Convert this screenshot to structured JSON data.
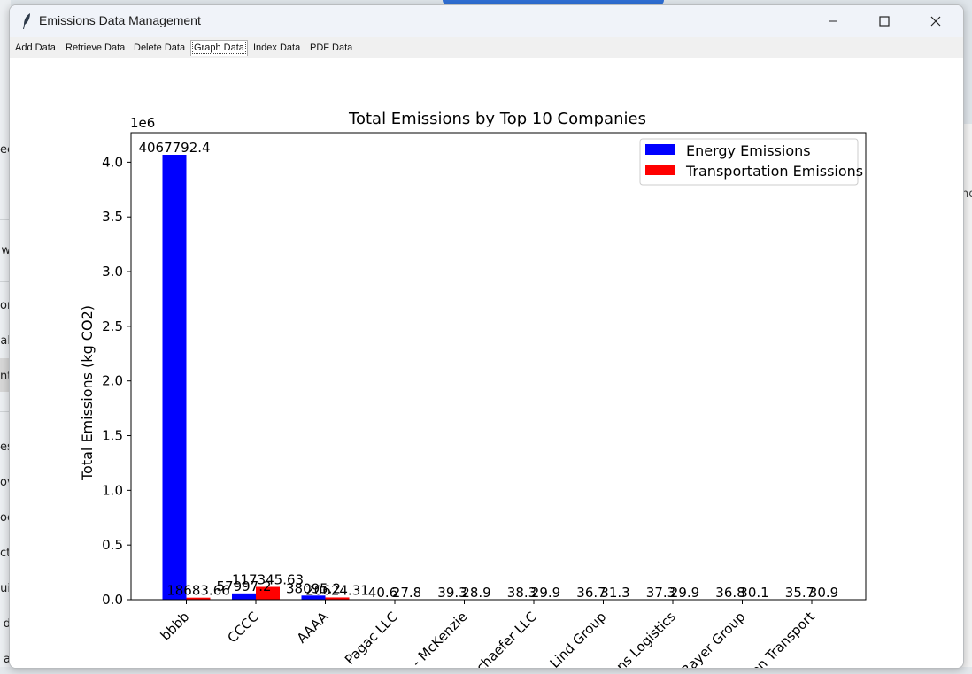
{
  "window": {
    "title": "Emissions Data Management"
  },
  "tabs": [
    {
      "label": "Add Data",
      "active": false
    },
    {
      "label": "Retrieve Data",
      "active": false
    },
    {
      "label": "Delete Data",
      "active": false
    },
    {
      "label": "Graph Data",
      "active": true
    },
    {
      "label": "Index Data",
      "active": false
    },
    {
      "label": "PDF Data",
      "active": false
    }
  ],
  "background_fragments": {
    "left": [
      "ee",
      "w",
      "or",
      "al",
      "nt",
      "es",
      "ov",
      "oc",
      "ct",
      "ui",
      "d",
      "a"
    ],
    "right": "nd"
  },
  "chart_data": {
    "type": "bar",
    "title": "Total Emissions by Top 10 Companies",
    "xlabel": "",
    "ylabel": "Total Emissions (kg CO2)",
    "y_offset_label": "1e6",
    "ylim": [
      0,
      4270000
    ],
    "yticks": [
      0,
      500000,
      1000000,
      1500000,
      2000000,
      2500000,
      3000000,
      3500000,
      4000000
    ],
    "ytick_labels": [
      "0.0",
      "0.5",
      "1.0",
      "1.5",
      "2.0",
      "2.5",
      "3.0",
      "3.5",
      "4.0"
    ],
    "categories": [
      "bbbb",
      "CCCC",
      "AAAA",
      "Pagac LLC",
      "- McKenzie",
      "chaefer LLC",
      "Lind Group",
      "ns Logistics",
      "Bayer Group",
      "on Transport"
    ],
    "series": [
      {
        "name": "Energy Emissions",
        "color": "#0000ff",
        "values": [
          4067792.4,
          57997.2,
          38095.2,
          40.6,
          39.3,
          38.3,
          36.7,
          37.3,
          36.8,
          35.7
        ],
        "labels": [
          "4067792.4",
          "57997.2",
          "38095.2",
          "40.6",
          "39.3",
          "38.3",
          "36.7",
          "37.3",
          "36.8",
          "35.7"
        ]
      },
      {
        "name": "Transportation Emissions",
        "color": "#ff0000",
        "values": [
          18683.66,
          117345.63,
          20624.31,
          27.8,
          28.9,
          29.9,
          31.3,
          29.9,
          30.1,
          30.9
        ],
        "labels": [
          "18683.66",
          "117345.63",
          "20624.31",
          "27.8",
          "28.9",
          "29.9",
          "31.3",
          "29.9",
          "30.1",
          "30.9"
        ]
      }
    ],
    "legend_position": "top-right",
    "grid": false
  }
}
